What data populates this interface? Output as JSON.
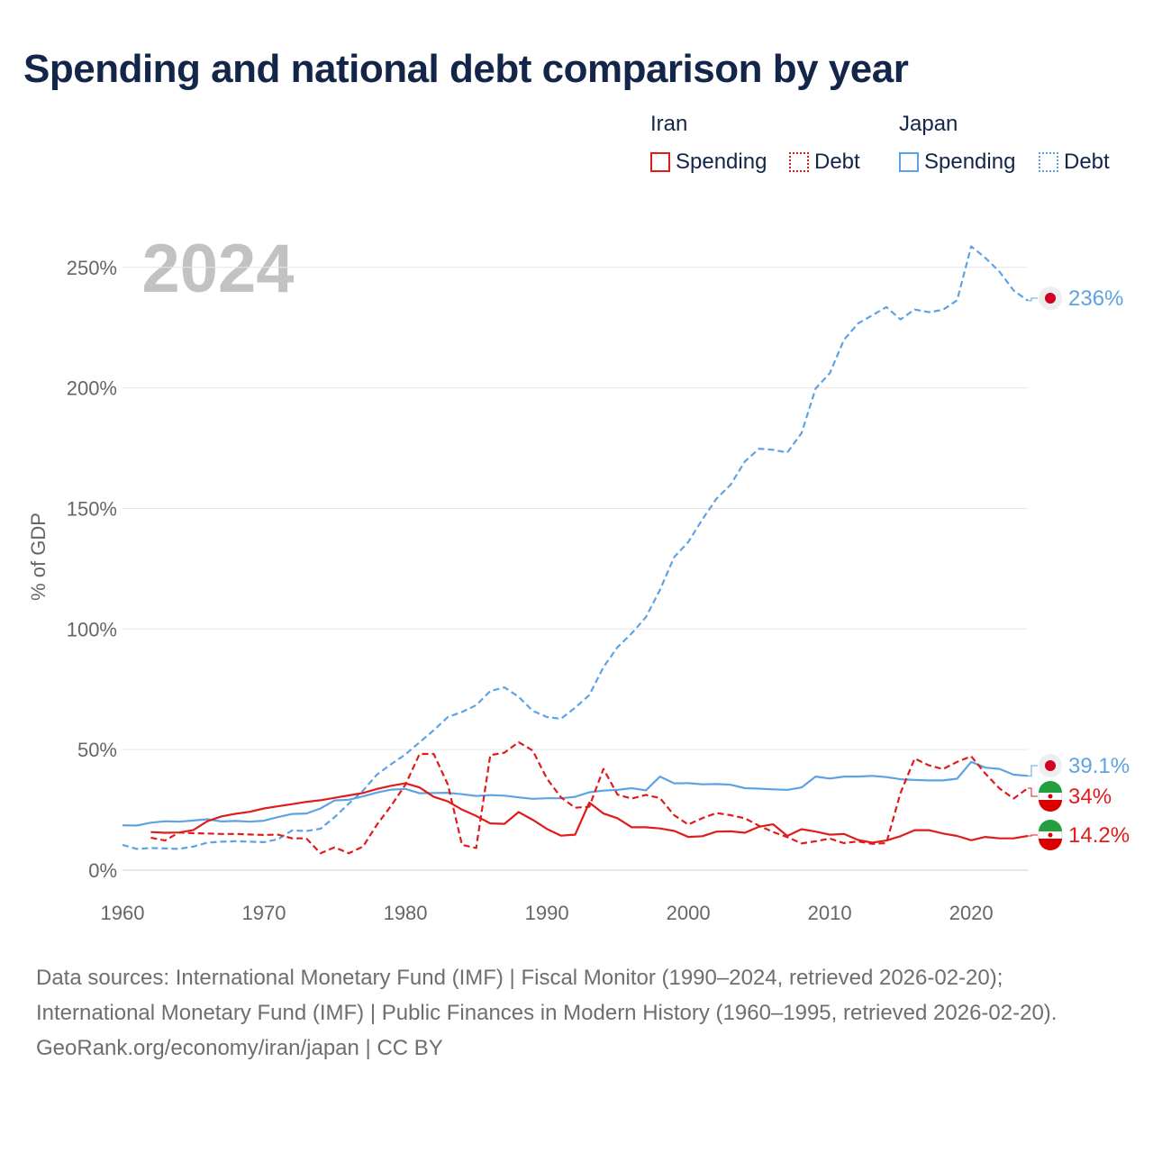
{
  "title": "Spending and national debt comparison by year",
  "legend": {
    "iran_label": "Iran",
    "japan_label": "Japan",
    "iran_spending": "Spending",
    "iran_debt": "Debt",
    "japan_spending": "Spending",
    "japan_debt": "Debt"
  },
  "colors": {
    "iran": "#e01b1b",
    "japan": "#5da3e4",
    "grid": "#e6e6e6",
    "axis_text": "#666666",
    "year_watermark": "#c2c2c2"
  },
  "year_watermark": "2024",
  "footer": {
    "sources": "Data sources: International Monetary Fund (IMF) | Fiscal Monitor (1990–2024, retrieved 2026-02-20); International Monetary Fund (IMF) | Public Finances in Modern History (1960–1995, retrieved 2026-02-20).",
    "credit": "GeoRank.org/economy/iran/japan | CC BY"
  },
  "chart_data": {
    "type": "line",
    "title": "Spending and national debt comparison by year",
    "xlabel": "",
    "ylabel": "% of GDP",
    "xlim": [
      1960,
      2024
    ],
    "ylim": [
      0,
      260
    ],
    "x_ticks": [
      1960,
      1970,
      1980,
      1990,
      2000,
      2010,
      2020
    ],
    "y_ticks": [
      0,
      50,
      100,
      150,
      200,
      250
    ],
    "y_tick_labels": [
      "0%",
      "50%",
      "100%",
      "150%",
      "200%",
      "250%"
    ],
    "grid": true,
    "legend_position": "top-right",
    "end_labels": [
      {
        "series": "Japan Debt",
        "label": "236%"
      },
      {
        "series": "Japan Spending",
        "label": "39.1%"
      },
      {
        "series": "Iran Debt",
        "label": "34%"
      },
      {
        "series": "Iran Spending",
        "label": "14.2%"
      }
    ],
    "series": [
      {
        "name": "Japan Debt",
        "country": "japan",
        "style": "dashed",
        "x": [
          1960,
          1961,
          1962,
          1963,
          1964,
          1965,
          1966,
          1967,
          1968,
          1969,
          1970,
          1971,
          1972,
          1973,
          1974,
          1975,
          1976,
          1977,
          1978,
          1979,
          1980,
          1981,
          1982,
          1983,
          1984,
          1985,
          1986,
          1987,
          1988,
          1989,
          1990,
          1991,
          1992,
          1993,
          1994,
          1995,
          1996,
          1997,
          1998,
          1999,
          2000,
          2001,
          2002,
          2003,
          2004,
          2005,
          2006,
          2007,
          2008,
          2009,
          2010,
          2011,
          2012,
          2013,
          2014,
          2015,
          2016,
          2017,
          2018,
          2019,
          2020,
          2021,
          2022,
          2023,
          2024
        ],
        "values": [
          10.5,
          8.8,
          9.2,
          9,
          8.8,
          9.8,
          11.4,
          11.8,
          12,
          11.8,
          11.6,
          12.8,
          16.5,
          16.2,
          17.2,
          22,
          27.6,
          33,
          39.7,
          44,
          48,
          53,
          58,
          63.5,
          65.6,
          68.4,
          74.3,
          75.8,
          71.9,
          66.1,
          63.5,
          62.8,
          67.4,
          72.6,
          84.2,
          92.5,
          98.2,
          104.9,
          116.3,
          129.8,
          136.1,
          145.5,
          154.1,
          159.9,
          169.5,
          174.8,
          174.3,
          173.2,
          181.2,
          199.8,
          206.1,
          219.9,
          226.7,
          230.1,
          233.5,
          228.4,
          232.5,
          231.4,
          232.4,
          236.3,
          258.7,
          253.9,
          248.2,
          240.4,
          236.2
        ]
      },
      {
        "name": "Japan Spending",
        "country": "japan",
        "style": "solid",
        "x": [
          1960,
          1961,
          1962,
          1963,
          1964,
          1965,
          1966,
          1967,
          1968,
          1969,
          1970,
          1971,
          1972,
          1973,
          1974,
          1975,
          1976,
          1977,
          1978,
          1979,
          1980,
          1981,
          1982,
          1983,
          1984,
          1985,
          1986,
          1987,
          1988,
          1989,
          1990,
          1991,
          1992,
          1993,
          1994,
          1995,
          1996,
          1997,
          1998,
          1999,
          2000,
          2001,
          2002,
          2003,
          2004,
          2005,
          2006,
          2007,
          2008,
          2009,
          2010,
          2011,
          2012,
          2013,
          2014,
          2015,
          2016,
          2017,
          2018,
          2019,
          2020,
          2021,
          2022,
          2023,
          2024
        ],
        "values": [
          18.6,
          18.5,
          19.7,
          20.3,
          20.1,
          20.6,
          21.1,
          20.2,
          20.4,
          20.1,
          20.5,
          22,
          23.3,
          23.5,
          25.6,
          28.9,
          29.2,
          30.6,
          32.2,
          33.4,
          33.7,
          31.9,
          32,
          32.1,
          31.5,
          30.8,
          31.1,
          30.9,
          30.2,
          29.6,
          29.8,
          29.8,
          30.4,
          32.3,
          33,
          33.3,
          34,
          33.1,
          38.8,
          36,
          36.1,
          35.6,
          35.7,
          35.4,
          34,
          33.8,
          33.5,
          33.3,
          34.3,
          38.8,
          38,
          38.8,
          38.8,
          39.1,
          38.6,
          37.7,
          37.4,
          37.2,
          37.2,
          37.9,
          44.9,
          42.5,
          42,
          39.6,
          39.1
        ]
      },
      {
        "name": "Iran Debt",
        "country": "iran",
        "style": "dashed",
        "x": [
          1962,
          1963,
          1964,
          1965,
          1966,
          1967,
          1968,
          1969,
          1970,
          1971,
          1972,
          1973,
          1974,
          1975,
          1976,
          1977,
          1978,
          1979,
          1980,
          1981,
          1982,
          1983,
          1984,
          1985,
          1986,
          1987,
          1988,
          1989,
          1990,
          1991,
          1992,
          1993,
          1994,
          1995,
          1996,
          1997,
          1998,
          1999,
          2000,
          2001,
          2002,
          2003,
          2004,
          2005,
          2006,
          2007,
          2008,
          2009,
          2010,
          2011,
          2012,
          2013,
          2014,
          2015,
          2016,
          2017,
          2018,
          2019,
          2020,
          2021,
          2022,
          2023,
          2024
        ],
        "values": [
          13.5,
          12.3,
          15.6,
          15.3,
          15.2,
          15,
          15,
          14.8,
          14.6,
          14.7,
          13.2,
          13.2,
          7,
          9.5,
          7,
          9.8,
          19,
          26.8,
          35.5,
          48.2,
          48.2,
          35.5,
          10.5,
          9.2,
          47.7,
          48.7,
          53.1,
          49.6,
          38,
          30.2,
          25.9,
          26.3,
          42,
          31.3,
          29.7,
          31.2,
          29.9,
          22.8,
          18.9,
          21.6,
          23.7,
          22.8,
          21.5,
          18.4,
          15.8,
          13.7,
          11.1,
          12,
          13.1,
          11.2,
          11.9,
          10.9,
          11.2,
          32,
          46.3,
          43.5,
          41.9,
          44.9,
          47.2,
          40,
          33.9,
          29.7,
          34
        ]
      },
      {
        "name": "Iran Spending",
        "country": "iran",
        "style": "solid",
        "x": [
          1962,
          1963,
          1964,
          1965,
          1966,
          1967,
          1968,
          1969,
          1970,
          1971,
          1972,
          1973,
          1974,
          1975,
          1976,
          1977,
          1978,
          1979,
          1980,
          1981,
          1982,
          1983,
          1984,
          1985,
          1986,
          1987,
          1988,
          1989,
          1990,
          1991,
          1992,
          1993,
          1994,
          1995,
          1996,
          1997,
          1998,
          1999,
          2000,
          2001,
          2002,
          2003,
          2004,
          2005,
          2006,
          2007,
          2008,
          2009,
          2010,
          2011,
          2012,
          2013,
          2014,
          2015,
          2016,
          2017,
          2018,
          2019,
          2020,
          2021,
          2022,
          2023,
          2024
        ],
        "values": [
          15.8,
          15.5,
          15.6,
          16.6,
          20.3,
          22.3,
          23.4,
          24.2,
          25.6,
          26.5,
          27.4,
          28.3,
          29,
          30,
          31,
          32,
          33.7,
          35,
          36,
          34.3,
          30.4,
          28.5,
          25.1,
          22.5,
          19.4,
          19.2,
          24.1,
          20.9,
          17.1,
          14.3,
          14.7,
          28,
          23.5,
          21.5,
          17.8,
          17.8,
          17.3,
          16.3,
          13.8,
          14.1,
          16,
          16.1,
          15.5,
          18,
          19,
          14.2,
          17,
          16,
          14.7,
          15,
          12.5,
          11.4,
          12.3,
          14.1,
          16.6,
          16.6,
          15.2,
          14.2,
          12.4,
          13.8,
          13.2,
          13.2,
          14.2
        ]
      }
    ]
  }
}
